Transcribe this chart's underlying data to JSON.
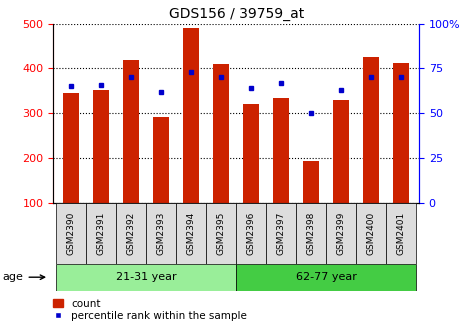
{
  "title": "GDS156 / 39759_at",
  "samples": [
    "GSM2390",
    "GSM2391",
    "GSM2392",
    "GSM2393",
    "GSM2394",
    "GSM2395",
    "GSM2396",
    "GSM2397",
    "GSM2398",
    "GSM2399",
    "GSM2400",
    "GSM2401"
  ],
  "counts": [
    345,
    352,
    418,
    293,
    490,
    410,
    320,
    335,
    193,
    330,
    425,
    413
  ],
  "percentiles": [
    65,
    66,
    70,
    62,
    73,
    70,
    64,
    67,
    50,
    63,
    70,
    70
  ],
  "groups": [
    {
      "label": "21-31 year",
      "start": 0,
      "end": 6,
      "color": "#99ee99"
    },
    {
      "label": "62-77 year",
      "start": 6,
      "end": 12,
      "color": "#44cc44"
    }
  ],
  "bar_color": "#cc2200",
  "dot_color": "#0000cc",
  "ylim_left": [
    100,
    500
  ],
  "ylim_right": [
    0,
    100
  ],
  "yticks_left": [
    100,
    200,
    300,
    400,
    500
  ],
  "yticks_right": [
    0,
    25,
    50,
    75,
    100
  ],
  "ylabel_right_labels": [
    "0",
    "25",
    "50",
    "75",
    "100%"
  ],
  "bar_width": 0.55,
  "age_label": "age"
}
